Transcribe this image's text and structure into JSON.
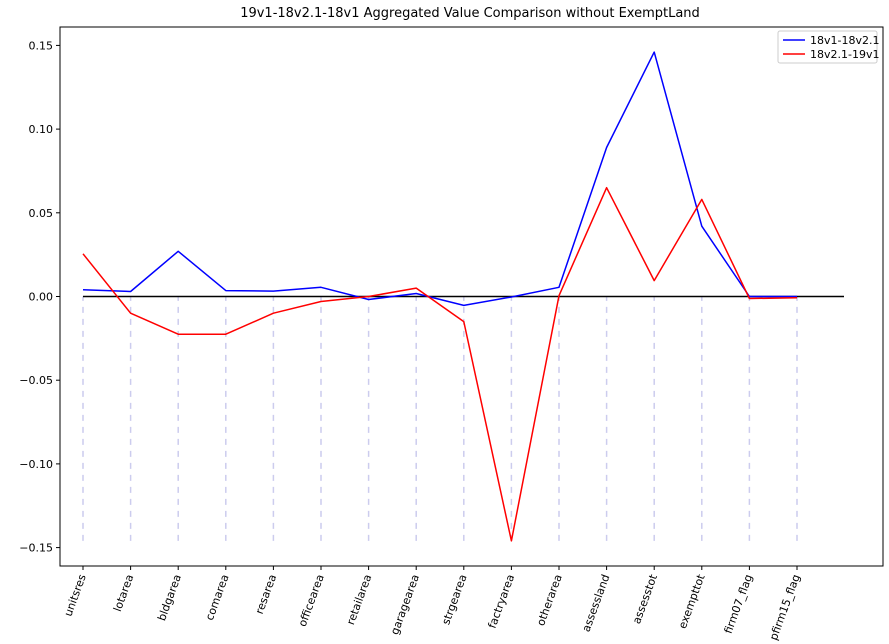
{
  "chart_data": {
    "type": "line",
    "title": "19v1-18v2.1-18v1 Aggregated Value Comparison without ExemptLand",
    "xlabel": "",
    "ylabel": "",
    "categories": [
      "unitsres",
      "lotarea",
      "bldgarea",
      "comarea",
      "resarea",
      "officearea",
      "retailarea",
      "garagearea",
      "strgearea",
      "factryarea",
      "otherarea",
      "assessland",
      "assesstot",
      "exempttot",
      "firm07_flag",
      "pfirm15_flag"
    ],
    "series": [
      {
        "name": "18v1-18v2.1",
        "color": "#0000ff",
        "values": [
          0.004,
          0.003,
          0.027,
          0.0035,
          0.0032,
          0.0055,
          -0.0018,
          0.0018,
          -0.0053,
          -0.0003,
          0.0055,
          0.089,
          0.146,
          0.042,
          0.0,
          0.0
        ]
      },
      {
        "name": "18v2.1-19v1",
        "color": "#ff0000",
        "values": [
          0.0255,
          -0.01,
          -0.0225,
          -0.0225,
          -0.01,
          -0.003,
          0.0,
          0.005,
          -0.015,
          -0.146,
          0.0005,
          0.065,
          0.0095,
          0.058,
          -0.0012,
          -0.0008
        ]
      }
    ],
    "zero_line_color": "#000000",
    "guide_line_color": "#ccccee",
    "yticks": [
      -0.15,
      -0.1,
      -0.05,
      0.0,
      0.05,
      0.1,
      0.15
    ],
    "ytick_labels": [
      "−0.15",
      "−0.10",
      "−0.05",
      "0.00",
      "0.05",
      "0.10",
      "0.15"
    ],
    "ylim": [
      -0.161,
      0.161
    ],
    "guide_range": [
      -0.146,
      0.0
    ],
    "legend": "top-right",
    "grid": false
  }
}
